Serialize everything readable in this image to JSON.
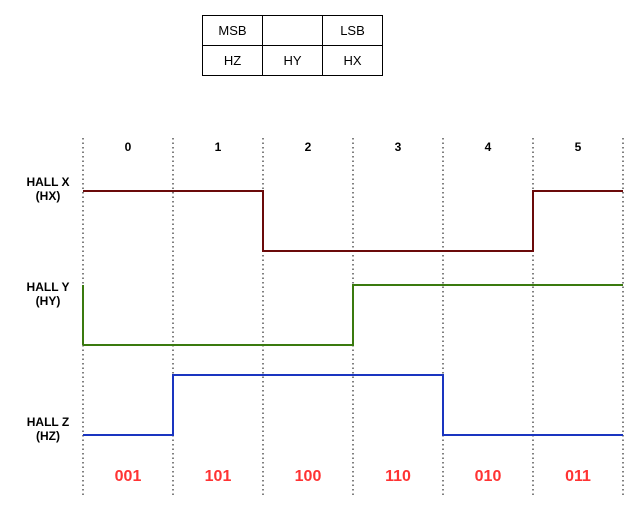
{
  "bit_table": {
    "rows": [
      [
        "MSB",
        "",
        "LSB"
      ],
      [
        "HZ",
        "HY",
        "HX"
      ]
    ]
  },
  "steps": [
    "0",
    "1",
    "2",
    "3",
    "4",
    "5"
  ],
  "signals": [
    {
      "name": "HALL X",
      "abbr": "(HX)",
      "color": "#6b0a0a",
      "levels": [
        1,
        1,
        0,
        0,
        0,
        1
      ]
    },
    {
      "name": "HALL Y",
      "abbr": "(HY)",
      "color": "#3a7a0f",
      "levels": [
        0,
        0,
        0,
        1,
        1,
        1
      ]
    },
    {
      "name": "HALL Z",
      "abbr": "(HZ)",
      "color": "#1a35c0",
      "levels": [
        0,
        1,
        1,
        1,
        0,
        0
      ]
    }
  ],
  "codes": [
    "001",
    "101",
    "100",
    "110",
    "010",
    "011"
  ],
  "colors": {
    "code_text": "#ff3333",
    "divider": "#000000"
  }
}
